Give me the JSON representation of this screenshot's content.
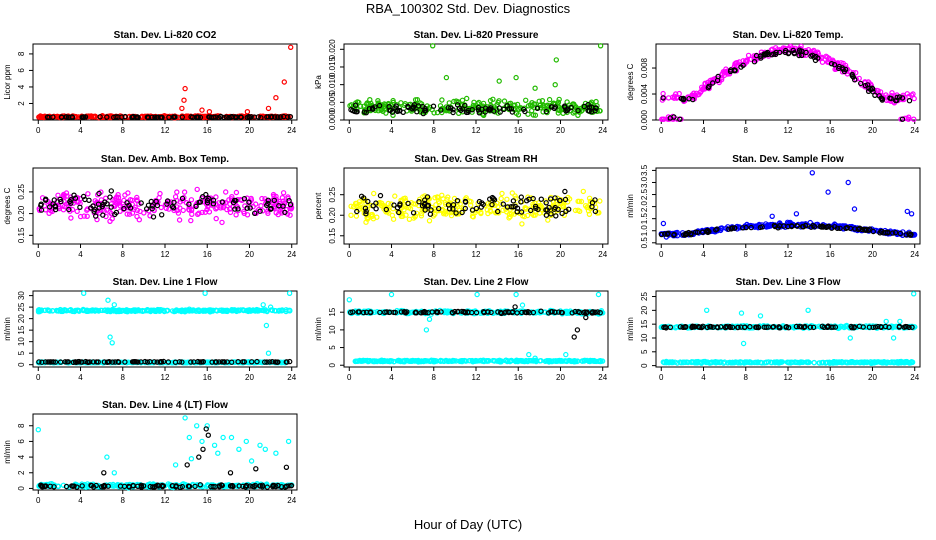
{
  "title": "RBA_100302  Std. Dev. Diagnostics",
  "xlabel": "Hour of Day (UTC)",
  "colors": {
    "black": "#000000",
    "red": "#ff0000",
    "green": "#22bb00",
    "magenta": "#ff00ff",
    "yellow": "#ffff00",
    "blue": "#0000ff",
    "cyan": "#00ffff"
  },
  "chart_data": [
    {
      "type": "scatter",
      "title": "Stan. Dev. Li-820 CO2",
      "ylabel": "Licor ppm",
      "xlim": [
        -0.5,
        24.5
      ],
      "ylim": [
        0,
        9.2
      ],
      "yticks": [
        2,
        4,
        6,
        8
      ],
      "ytick_labels": [
        "2",
        "4",
        "6",
        "8"
      ],
      "xticks": [
        0,
        4,
        8,
        12,
        16,
        20,
        24
      ],
      "color": "red",
      "series": [
        {
          "name": "main",
          "base": 0.4,
          "spread": 0.15,
          "spikes": [
            [
              13.6,
              1.4
            ],
            [
              13.8,
              2.4
            ],
            [
              13.9,
              3.8
            ],
            [
              15.5,
              1.2
            ],
            [
              16.2,
              1.0
            ],
            [
              19.8,
              1.0
            ],
            [
              21.8,
              1.4
            ],
            [
              22.5,
              2.7
            ],
            [
              23.3,
              4.6
            ],
            [
              23.9,
              8.8
            ]
          ]
        },
        {
          "name": "black",
          "base": 0.35,
          "spread": 0.1
        }
      ]
    },
    {
      "type": "scatter",
      "title": "Stan. Dev. Li-820 Pressure",
      "ylabel": "kPa",
      "xlim": [
        -0.5,
        24.5
      ],
      "ylim": [
        0,
        0.0215
      ],
      "yticks": [
        0,
        0.005,
        0.01,
        0.015,
        0.02
      ],
      "ytick_labels": [
        "0.000",
        "0.005",
        "0.010",
        "0.015",
        "0.020"
      ],
      "xticks": [
        0,
        4,
        8,
        12,
        16,
        20,
        24
      ],
      "color": "green",
      "series": [
        {
          "name": "main",
          "base": 0.0035,
          "spread": 0.003,
          "spikes": [
            [
              7.9,
              0.021
            ],
            [
              23.8,
              0.021
            ],
            [
              14.2,
              0.011
            ],
            [
              9.2,
              0.012
            ],
            [
              15.8,
              0.012
            ],
            [
              19.6,
              0.017
            ],
            [
              17.6,
              0.009
            ],
            [
              19.5,
              0.01
            ]
          ]
        },
        {
          "name": "black",
          "base": 0.003,
          "spread": 0.002
        }
      ]
    },
    {
      "type": "scatter",
      "title": "Stan. Dev. Li-820 Temp.",
      "ylabel": "degrees C",
      "xlim": [
        -0.5,
        24.5
      ],
      "ylim": [
        0,
        0.0117
      ],
      "yticks": [
        0,
        0.004,
        0.008
      ],
      "ytick_labels": [
        "0.000",
        "0.004",
        "0.008"
      ],
      "xticks": [
        0,
        4,
        8,
        12,
        16,
        20,
        24
      ],
      "color": "magenta",
      "series": [
        {
          "name": "main",
          "shape": "arch",
          "base": 0.0035,
          "peak": 0.0108,
          "spread": 0.001
        },
        {
          "name": "black",
          "shape": "arch",
          "base": 0.0033,
          "peak": 0.0105,
          "spread": 0.0007
        }
      ]
    },
    {
      "type": "scatter",
      "title": "Stan. Dev. Amb. Box Temp.",
      "ylabel": "degrees C",
      "xlim": [
        -0.5,
        24.5
      ],
      "ylim": [
        0.13,
        0.305
      ],
      "yticks": [
        0.15,
        0.2,
        0.25
      ],
      "ytick_labels": [
        "0.15",
        "0.20",
        "0.25"
      ],
      "xticks": [
        0,
        4,
        8,
        12,
        16,
        20,
        24
      ],
      "color": "magenta",
      "series": [
        {
          "name": "main",
          "base": 0.22,
          "spread": 0.045
        },
        {
          "name": "black",
          "base": 0.22,
          "spread": 0.035
        }
      ]
    },
    {
      "type": "scatter",
      "title": "Stan. Dev. Gas Stream RH",
      "ylabel": "percent",
      "xlim": [
        -0.5,
        24.5
      ],
      "ylim": [
        0.13,
        0.315
      ],
      "yticks": [
        0.15,
        0.2,
        0.25
      ],
      "ytick_labels": [
        "0.15",
        "0.20",
        "0.25"
      ],
      "xticks": [
        0,
        4,
        8,
        12,
        16,
        20,
        24
      ],
      "color": "yellow",
      "series": [
        {
          "name": "main",
          "base": 0.22,
          "spread": 0.045
        },
        {
          "name": "black",
          "base": 0.22,
          "spread": 0.04
        }
      ]
    },
    {
      "type": "scatter",
      "title": "Stan. Dev. Sample Flow",
      "ylabel": "ml/min",
      "xlim": [
        -0.5,
        24.5
      ],
      "ylim": [
        0.45,
        3.6
      ],
      "yticks": [
        0.5,
        1.0,
        1.5,
        2.0,
        2.5,
        3.0,
        3.5
      ],
      "ytick_labels": [
        "0.5",
        "1.0",
        "1.5",
        "2.0",
        "2.5",
        "3.0",
        "3.5"
      ],
      "xticks": [
        0,
        4,
        8,
        12,
        16,
        20,
        24
      ],
      "color": "blue",
      "series": [
        {
          "name": "main",
          "shape": "hump",
          "base": 0.85,
          "peak": 1.25,
          "spread": 0.12,
          "spikes": [
            [
              14.3,
              3.4
            ],
            [
              15.8,
              2.6
            ],
            [
              17.7,
              3.0
            ],
            [
              18.3,
              1.9
            ],
            [
              23.3,
              1.8
            ],
            [
              23.7,
              1.7
            ],
            [
              10.5,
              1.6
            ],
            [
              12.8,
              1.7
            ],
            [
              0.2,
              1.3
            ]
          ]
        },
        {
          "name": "black",
          "shape": "hump",
          "base": 0.85,
          "peak": 1.2,
          "spread": 0.08
        }
      ]
    },
    {
      "type": "scatter",
      "title": "Stan. Dev. Line 1 Flow",
      "ylabel": "ml/min",
      "xlim": [
        -0.5,
        24.5
      ],
      "ylim": [
        -1,
        32
      ],
      "yticks": [
        0,
        5,
        10,
        15,
        20,
        25,
        30
      ],
      "ytick_labels": [
        "0",
        "5",
        "10",
        "15",
        "20",
        "25",
        "30"
      ],
      "xticks": [
        0,
        4,
        8,
        12,
        16,
        20,
        24
      ],
      "color": "cyan",
      "series": [
        {
          "name": "main",
          "base": 23.5,
          "spread": 0.7,
          "spikes": [
            [
              6.6,
              28
            ],
            [
              6.8,
              12
            ],
            [
              7.0,
              9.5
            ],
            [
              7.2,
              26
            ],
            [
              4.3,
              31
            ],
            [
              15.8,
              31
            ],
            [
              21.3,
              26
            ],
            [
              21.6,
              17
            ],
            [
              22.0,
              25
            ],
            [
              23.8,
              31
            ],
            [
              21.8,
              5
            ]
          ]
        },
        {
          "name": "low",
          "base": 1.0,
          "spread": 0.3
        },
        {
          "name": "black",
          "base": 1.2,
          "spread": 0.25
        }
      ]
    },
    {
      "type": "scatter",
      "title": "Stan. Dev. Line 2 Flow",
      "ylabel": "ml/min",
      "xlim": [
        -0.5,
        24.5
      ],
      "ylim": [
        -0.5,
        21
      ],
      "yticks": [
        0,
        5,
        10,
        15
      ],
      "ytick_labels": [
        "0",
        "5",
        "10",
        "15"
      ],
      "xticks": [
        0,
        4,
        8,
        12,
        16,
        20,
        24
      ],
      "color": "cyan",
      "series": [
        {
          "name": "main",
          "base": 15,
          "spread": 0.6,
          "spikes": [
            [
              0,
              18.5
            ],
            [
              4.0,
              20
            ],
            [
              7.3,
              10
            ],
            [
              7.6,
              13
            ],
            [
              12.1,
              20
            ],
            [
              15.8,
              20
            ],
            [
              16.4,
              17
            ],
            [
              20.5,
              3
            ],
            [
              21.3,
              1
            ],
            [
              23.6,
              20
            ],
            [
              17.0,
              3
            ],
            [
              17.6,
              2
            ]
          ]
        },
        {
          "name": "low",
          "base": 1.2,
          "spread": 0.3
        },
        {
          "name": "black",
          "base": 15,
          "spread": 0.4,
          "spikes": [
            [
              21.3,
              8
            ],
            [
              21.6,
              10
            ],
            [
              22.4,
              13.5
            ],
            [
              15.7,
              16.5
            ]
          ]
        }
      ]
    },
    {
      "type": "scatter",
      "title": "Stan. Dev. Line 3 Flow",
      "ylabel": "ml/min",
      "xlim": [
        -0.5,
        24.5
      ],
      "ylim": [
        -0.5,
        27
      ],
      "yticks": [
        0,
        5,
        10,
        15,
        20,
        25
      ],
      "ytick_labels": [
        "0",
        "5",
        "10",
        "15",
        "20",
        "25"
      ],
      "xticks": [
        0,
        4,
        8,
        12,
        16,
        20,
        24
      ],
      "color": "cyan",
      "series": [
        {
          "name": "main",
          "base": 14,
          "spread": 0.6,
          "spikes": [
            [
              4.3,
              20
            ],
            [
              7.6,
              19
            ],
            [
              7.8,
              8
            ],
            [
              9.4,
              18
            ],
            [
              13.9,
              20
            ],
            [
              17.9,
              10
            ],
            [
              23.9,
              26
            ],
            [
              22.0,
              10
            ],
            [
              21.3,
              16
            ],
            [
              22.6,
              16
            ]
          ]
        },
        {
          "name": "low",
          "base": 1.2,
          "spread": 0.4
        },
        {
          "name": "black",
          "base": 14,
          "spread": 0.4
        }
      ]
    },
    {
      "type": "scatter",
      "title": "Stan. Dev. Line 4 (LT) Flow",
      "ylabel": "ml/min",
      "xlim": [
        -0.5,
        24.5
      ],
      "ylim": [
        -0.2,
        9.5
      ],
      "yticks": [
        0,
        2,
        4,
        6,
        8
      ],
      "ytick_labels": [
        "0",
        "2",
        "4",
        "6",
        "8"
      ],
      "xticks": [
        0,
        4,
        8,
        12,
        16,
        20,
        24
      ],
      "color": "cyan",
      "series": [
        {
          "name": "main",
          "base": 0.35,
          "spread": 0.3,
          "spikes": [
            [
              0,
              7.5
            ],
            [
              13.9,
              9.0
            ],
            [
              14.3,
              6.5
            ],
            [
              15.0,
              8.0
            ],
            [
              15.5,
              6.0
            ],
            [
              16.0,
              8.0
            ],
            [
              16.7,
              5.5
            ],
            [
              17.5,
              6.5
            ],
            [
              18.3,
              6.5
            ],
            [
              19.0,
              5.0
            ],
            [
              19.7,
              6.0
            ],
            [
              21.0,
              5.5
            ],
            [
              21.5,
              5.0
            ],
            [
              22.5,
              4.5
            ],
            [
              23.7,
              6.0
            ],
            [
              6.5,
              4.0
            ],
            [
              7.2,
              2.0
            ],
            [
              13.0,
              3.0
            ],
            [
              14.5,
              3.8
            ],
            [
              17.0,
              4.5
            ],
            [
              20.2,
              3.5
            ]
          ]
        },
        {
          "name": "black",
          "base": 0.3,
          "spread": 0.2,
          "spikes": [
            [
              6.2,
              2.0
            ],
            [
              15.2,
              4.0
            ],
            [
              15.6,
              5.0
            ],
            [
              15.9,
              7.6
            ],
            [
              16.1,
              6.8
            ],
            [
              20.6,
              2.5
            ],
            [
              23.5,
              2.7
            ],
            [
              14.1,
              3.0
            ],
            [
              18.2,
              2.0
            ]
          ]
        }
      ]
    }
  ]
}
